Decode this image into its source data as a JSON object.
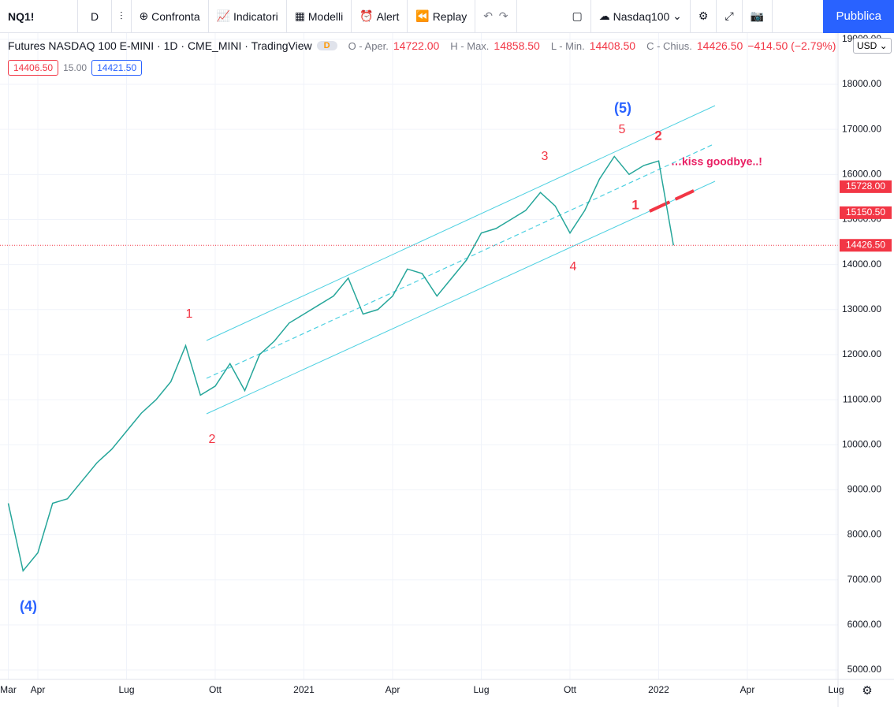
{
  "toolbar": {
    "symbol": "NQ1!",
    "interval": "D",
    "items": [
      "Confronta",
      "Indicatori",
      "Modelli",
      "Alert",
      "Replay"
    ],
    "layout": "Nasdaq100",
    "publish": "Pubblica"
  },
  "legend": {
    "title": "Futures NASDAQ 100 E-MINI · 1D · CME_MINI · TradingView",
    "badge": "D",
    "ohlc": [
      {
        "label": "O - Aper.",
        "value": "14722.00"
      },
      {
        "label": "H - Max.",
        "value": "14858.50"
      },
      {
        "label": "L - Min.",
        "value": "14408.50"
      },
      {
        "label": "C - Chius.",
        "value": "14426.50"
      }
    ],
    "change": "−414.50 (−2.79%)",
    "bid": "14406.50",
    "spread": "15.00",
    "ask": "14421.50"
  },
  "currency": "USD",
  "chart_data": {
    "type": "line",
    "categories": [
      "Mar",
      null,
      "Apr",
      null,
      null,
      null,
      null,
      null,
      "Lug",
      null,
      null,
      null,
      null,
      null,
      "Ott",
      null,
      null,
      null,
      null,
      null,
      "2021",
      null,
      null,
      null,
      null,
      null,
      "Apr",
      null,
      null,
      null,
      null,
      null,
      "Lug",
      null,
      null,
      null,
      null,
      null,
      "Ott",
      null,
      null,
      null,
      null,
      null,
      "2022",
      null,
      null,
      null,
      null,
      null,
      "Apr",
      null,
      null,
      null,
      null,
      null,
      "Lug"
    ],
    "series": [
      {
        "name": "NQ1!",
        "color": "#26a69a",
        "values": [
          8700,
          7200,
          7600,
          8700,
          8800,
          9200,
          9600,
          9900,
          10300,
          10700,
          11000,
          11400,
          12200,
          11100,
          11300,
          11800,
          11200,
          12000,
          12300,
          12700,
          12900,
          13100,
          13300,
          13700,
          12900,
          13000,
          13300,
          13900,
          13800,
          13300,
          13700,
          14100,
          14700,
          14800,
          15000,
          15200,
          15600,
          15300,
          14700,
          15200,
          15900,
          16400,
          16000,
          16200,
          16300,
          14426.5,
          null,
          null,
          null,
          null,
          null,
          null,
          null,
          null,
          null,
          null,
          null
        ]
      }
    ],
    "ylim": [
      4790,
      19085
    ],
    "yticks": [
      {
        "value": 5000,
        "label": "5000.00"
      },
      {
        "value": 6000,
        "label": "6000.00"
      },
      {
        "value": 7000,
        "label": "7000.00"
      },
      {
        "value": 8000,
        "label": "8000.00"
      },
      {
        "value": 9000,
        "label": "9000.00"
      },
      {
        "value": 10000,
        "label": "10000.00"
      },
      {
        "value": 11000,
        "label": "11000.00"
      },
      {
        "value": 12000,
        "label": "12000.00"
      },
      {
        "value": 13000,
        "label": "13000.00"
      },
      {
        "value": 14000,
        "label": "14000.00"
      },
      {
        "value": 15000,
        "label": "15000.00"
      },
      {
        "value": 16000,
        "label": "16000.00"
      },
      {
        "value": 17000,
        "label": "17000.00"
      },
      {
        "value": 18000,
        "label": "18000.00"
      },
      {
        "value": 19000,
        "label": "19000.00"
      }
    ],
    "grid": true,
    "price_labels": [
      {
        "value": 15728,
        "label": "15728.00",
        "color": "#f23645"
      },
      {
        "value": 15150.5,
        "label": "15150.50",
        "color": "#f23645"
      },
      {
        "value": 14426.5,
        "label": "14426.50",
        "color": "#f23645"
      }
    ],
    "annotations": [
      "(4)",
      "1",
      "2",
      "3",
      "4",
      "5",
      "(5)",
      "1",
      "2",
      "…kiss goodbye..!"
    ]
  }
}
